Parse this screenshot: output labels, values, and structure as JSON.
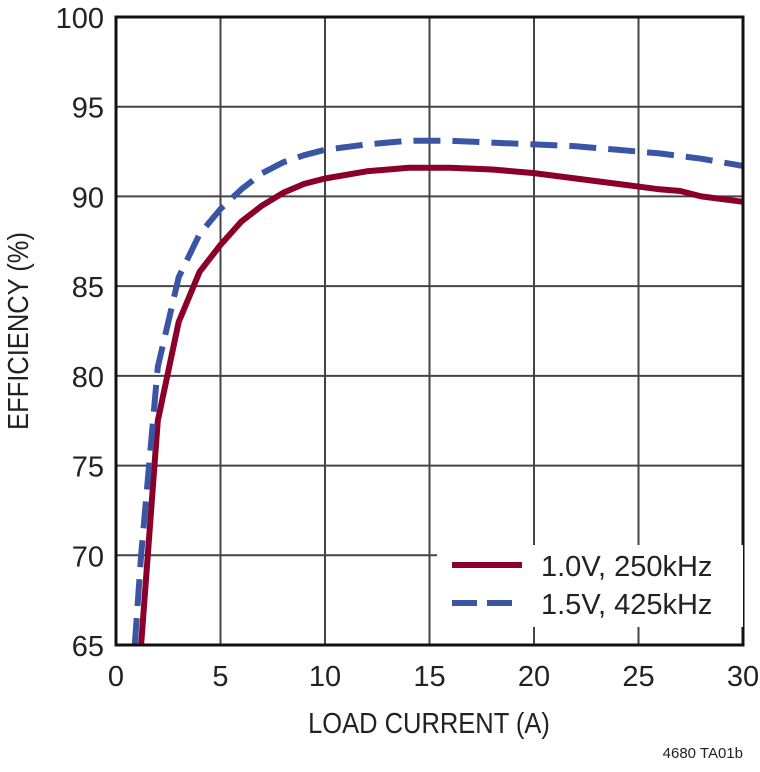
{
  "chart_data": {
    "type": "line",
    "title": "",
    "xlabel": "LOAD CURRENT (A)",
    "ylabel": "EFFICIENCY (%)",
    "xlim": [
      0,
      30
    ],
    "ylim": [
      65,
      100
    ],
    "xticks": [
      0,
      5,
      10,
      15,
      20,
      25,
      30
    ],
    "yticks": [
      65,
      70,
      75,
      80,
      85,
      90,
      95,
      100
    ],
    "grid": true,
    "legend_placement": "bottom-right",
    "footnote": "4680 TA01b",
    "series": [
      {
        "name": "1.0V, 250kHz",
        "color": "#8b0028",
        "style": "solid",
        "x": [
          1.2,
          2,
          3,
          4,
          5,
          6,
          7,
          8,
          9,
          10,
          12,
          14,
          16,
          18,
          20,
          22,
          24,
          26,
          27,
          28,
          30
        ],
        "y": [
          65,
          77.5,
          83,
          85.8,
          87.3,
          88.6,
          89.5,
          90.2,
          90.7,
          91.0,
          91.4,
          91.6,
          91.6,
          91.5,
          91.3,
          91.0,
          90.7,
          90.4,
          90.3,
          90.0,
          89.7
        ]
      },
      {
        "name": "1.5V, 425kHz",
        "color": "#3a55a4",
        "style": "dashed",
        "x": [
          0.9,
          1.2,
          2,
          3,
          4,
          5,
          6,
          7,
          8,
          9,
          10,
          12,
          14,
          16,
          18,
          20,
          22,
          24,
          26,
          28,
          30
        ],
        "y": [
          65,
          70,
          80.5,
          85.5,
          87.9,
          89.3,
          90.4,
          91.3,
          91.9,
          92.3,
          92.6,
          92.9,
          93.1,
          93.1,
          93.0,
          92.9,
          92.8,
          92.6,
          92.4,
          92.1,
          91.7
        ]
      }
    ]
  }
}
